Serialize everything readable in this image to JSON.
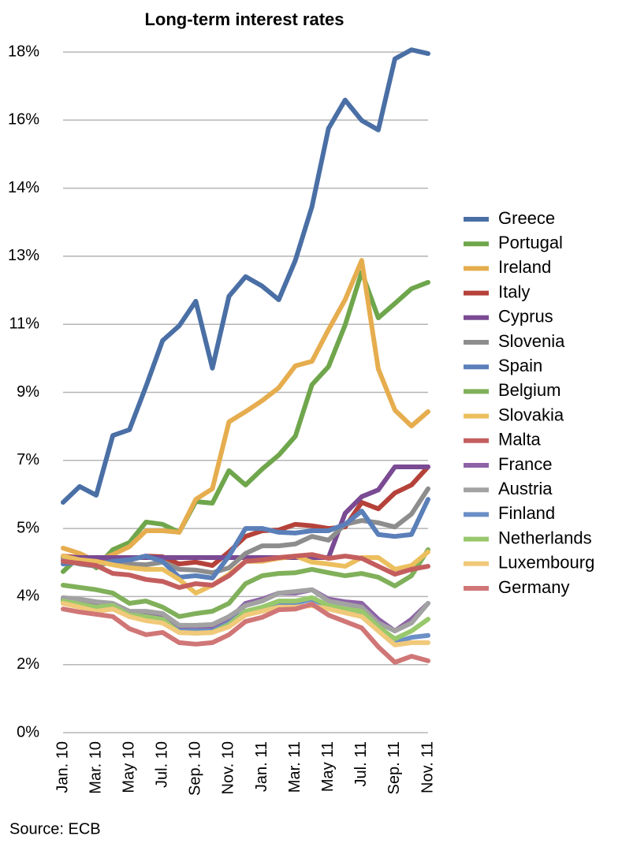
{
  "chart_data": {
    "type": "line",
    "title": "Long-term interest rates",
    "source": "Source: ECB",
    "categories": [
      "Jan. 10",
      null,
      "Mar. 10",
      null,
      "May 10",
      null,
      "Jul. 10",
      null,
      "Sep. 10",
      null,
      "Nov. 10",
      null,
      "Jan. 11",
      null,
      "Mar. 11",
      null,
      "May 11",
      null,
      "Jul. 11",
      null,
      "Sep. 11",
      null,
      "Nov. 11"
    ],
    "ylim": [
      0,
      18
    ],
    "yticks": [
      {
        "value": 0,
        "label": "0%"
      },
      {
        "value": 1.8,
        "label": "2%"
      },
      {
        "value": 3.6,
        "label": "4%"
      },
      {
        "value": 5.4,
        "label": "5%"
      },
      {
        "value": 7.2,
        "label": "7%"
      },
      {
        "value": 9,
        "label": "9%"
      },
      {
        "value": 10.8,
        "label": "11%"
      },
      {
        "value": 12.6,
        "label": "13%"
      },
      {
        "value": 14.4,
        "label": "14%"
      },
      {
        "value": 16.2,
        "label": "16%"
      },
      {
        "value": 18,
        "label": "18%"
      }
    ],
    "grid": true,
    "legend": "right",
    "series": [
      {
        "name": "Greece",
        "color": "#4a6fa5",
        "values": [
          6.09,
          6.51,
          6.28,
          7.86,
          8.01,
          9.16,
          10.37,
          10.76,
          11.41,
          9.64,
          11.54,
          12.06,
          11.81,
          11.45,
          12.49,
          13.91,
          15.98,
          16.73,
          16.19,
          15.94,
          17.82,
          18.06,
          17.96
        ]
      },
      {
        "name": "Portugal",
        "color": "#6fa64c",
        "values": [
          4.26,
          4.67,
          4.36,
          4.84,
          5.03,
          5.57,
          5.51,
          5.3,
          6.11,
          6.07,
          6.93,
          6.55,
          6.97,
          7.34,
          7.84,
          9.2,
          9.68,
          10.78,
          12.18,
          10.97,
          11.35,
          11.74,
          11.91
        ]
      },
      {
        "name": "Ireland",
        "color": "#e6ad4f",
        "values": [
          4.88,
          4.74,
          4.53,
          4.71,
          4.92,
          5.34,
          5.34,
          5.3,
          6.17,
          6.45,
          8.22,
          8.49,
          8.78,
          9.12,
          9.7,
          9.82,
          10.66,
          11.45,
          12.49,
          9.62,
          8.53,
          8.11,
          8.49
        ]
      },
      {
        "name": "Italy",
        "color": "#b5423a",
        "values": [
          4.67,
          4.63,
          4.57,
          4.51,
          4.57,
          4.67,
          4.65,
          4.46,
          4.51,
          4.42,
          4.78,
          5.19,
          5.34,
          5.36,
          5.51,
          5.47,
          5.4,
          5.44,
          6.09,
          5.92,
          6.34,
          6.55,
          7.03
        ]
      },
      {
        "name": "Cyprus",
        "color": "#7a4a93",
        "values": [
          4.63,
          4.63,
          4.63,
          4.63,
          4.63,
          4.63,
          4.63,
          4.63,
          4.63,
          4.63,
          4.63,
          4.63,
          4.63,
          4.63,
          4.63,
          4.63,
          4.63,
          5.8,
          6.24,
          6.42,
          7.03,
          7.03,
          7.03
        ]
      },
      {
        "name": "Slovenia",
        "color": "#8d8d8d",
        "values": [
          4.57,
          4.46,
          4.4,
          4.53,
          4.46,
          4.44,
          4.51,
          4.32,
          4.3,
          4.23,
          4.36,
          4.74,
          4.94,
          4.94,
          4.99,
          5.19,
          5.09,
          5.51,
          5.61,
          5.55,
          5.44,
          5.78,
          6.45
        ]
      },
      {
        "name": "Spain",
        "color": "#5a7fb9",
        "values": [
          4.46,
          4.51,
          4.46,
          4.53,
          4.57,
          4.67,
          4.53,
          4.11,
          4.15,
          4.09,
          4.67,
          5.4,
          5.4,
          5.3,
          5.28,
          5.34,
          5.34,
          5.51,
          5.86,
          5.24,
          5.19,
          5.24,
          6.17
        ]
      },
      {
        "name": "Belgium",
        "color": "#80b05a",
        "values": [
          3.9,
          3.84,
          3.78,
          3.69,
          3.42,
          3.48,
          3.32,
          3.07,
          3.15,
          3.21,
          3.42,
          3.94,
          4.15,
          4.21,
          4.23,
          4.32,
          4.23,
          4.15,
          4.21,
          4.11,
          3.88,
          4.15,
          4.84
        ]
      },
      {
        "name": "Slovakia",
        "color": "#ecbf5e",
        "values": [
          4.67,
          4.57,
          4.53,
          4.44,
          4.36,
          4.32,
          4.32,
          4.05,
          3.69,
          3.9,
          4.19,
          4.53,
          4.53,
          4.61,
          4.67,
          4.51,
          4.46,
          4.4,
          4.63,
          4.63,
          4.32,
          4.42,
          4.78
        ]
      },
      {
        "name": "Malta",
        "color": "#c45e5e",
        "values": [
          4.53,
          4.48,
          4.42,
          4.21,
          4.17,
          4.05,
          4.0,
          3.84,
          3.94,
          3.9,
          4.15,
          4.53,
          4.57,
          4.63,
          4.67,
          4.71,
          4.61,
          4.67,
          4.61,
          4.4,
          4.19,
          4.32,
          4.4
        ]
      },
      {
        "name": "France",
        "color": "#8d63a6",
        "values": [
          3.53,
          3.48,
          3.42,
          3.38,
          3.15,
          3.15,
          3.11,
          2.73,
          2.73,
          2.75,
          3.0,
          3.42,
          3.53,
          3.69,
          3.69,
          3.78,
          3.53,
          3.46,
          3.42,
          3.0,
          2.69,
          3.0,
          3.42
        ]
      },
      {
        "name": "Austria",
        "color": "#a2a2a2",
        "values": [
          3.57,
          3.53,
          3.46,
          3.42,
          3.21,
          3.21,
          3.15,
          2.84,
          2.84,
          2.86,
          3.07,
          3.36,
          3.48,
          3.69,
          3.73,
          3.78,
          3.48,
          3.4,
          3.32,
          2.9,
          2.69,
          2.9,
          3.42
        ]
      },
      {
        "name": "Finland",
        "color": "#6b8fc6",
        "values": [
          3.42,
          3.36,
          3.27,
          3.32,
          3.07,
          3.0,
          2.94,
          2.69,
          2.69,
          2.69,
          2.9,
          3.21,
          3.27,
          3.42,
          3.42,
          3.53,
          3.32,
          3.21,
          3.15,
          2.73,
          2.38,
          2.52,
          2.57
        ]
      },
      {
        "name": "Netherlands",
        "color": "#98c86c",
        "values": [
          3.48,
          3.4,
          3.32,
          3.36,
          3.11,
          3.07,
          3.0,
          2.65,
          2.63,
          2.65,
          2.86,
          3.21,
          3.32,
          3.48,
          3.48,
          3.57,
          3.36,
          3.27,
          3.21,
          2.8,
          2.48,
          2.69,
          3.0
        ]
      },
      {
        "name": "Luxembourg",
        "color": "#f0c97a",
        "values": [
          3.42,
          3.32,
          3.21,
          3.27,
          3.07,
          2.96,
          2.9,
          2.65,
          2.63,
          2.65,
          2.8,
          3.11,
          3.21,
          3.32,
          3.32,
          3.36,
          3.27,
          3.17,
          3.07,
          2.69,
          2.32,
          2.38,
          2.38
        ]
      },
      {
        "name": "Germany",
        "color": "#d07676",
        "values": [
          3.27,
          3.19,
          3.13,
          3.07,
          2.75,
          2.59,
          2.65,
          2.38,
          2.34,
          2.38,
          2.59,
          2.94,
          3.05,
          3.25,
          3.27,
          3.4,
          3.11,
          2.94,
          2.77,
          2.27,
          1.86,
          2.02,
          1.9
        ]
      }
    ]
  }
}
